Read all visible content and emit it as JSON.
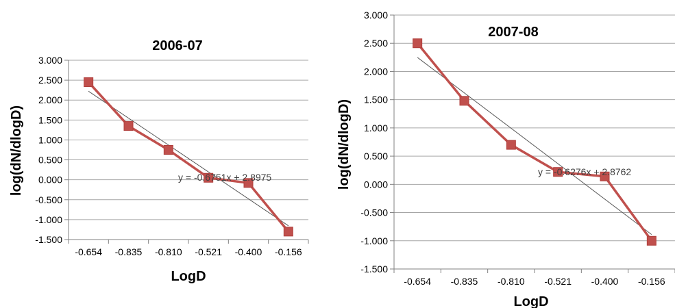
{
  "colors": {
    "series": "#c0504d",
    "marker_edge": "#b03f3c",
    "trend": "#595959",
    "grid": "#a6a6a6",
    "axis": "#808080"
  },
  "chart_data": [
    {
      "type": "line",
      "title": "2006-07",
      "xlabel": "LogD",
      "ylabel": "log(dN/dlogD)",
      "categories": [
        "-0.654",
        "-0.835",
        "-0.810",
        "-0.521",
        "-0.400",
        "-0.156"
      ],
      "series": [
        {
          "values": [
            2.45,
            1.35,
            0.75,
            0.05,
            -0.08,
            -1.3
          ]
        }
      ],
      "trendline": {
        "slope": -0.6751,
        "intercept": 2.8975,
        "equation": "y = -0.6751x + 2.8975"
      },
      "ylim": [
        -1.5,
        3.0
      ],
      "yticks": [
        "3.000",
        "2.500",
        "2.000",
        "1.500",
        "1.000",
        "0.500",
        "0.000",
        "-0.500",
        "-1.000",
        "-1.500"
      ],
      "grid": true,
      "legend": "none"
    },
    {
      "type": "line",
      "title": "2007-08",
      "xlabel": "LogD",
      "ylabel": "log(dN/dlogD)",
      "categories": [
        "-0.654",
        "-0.835",
        "-0.810",
        "-0.521",
        "-0.400",
        "-0.156"
      ],
      "series": [
        {
          "values": [
            2.5,
            1.48,
            0.7,
            0.22,
            0.14,
            -1.0
          ]
        }
      ],
      "trendline": {
        "slope": -0.6276,
        "intercept": 2.8762,
        "equation": "y = -0.6276x + 2.8762"
      },
      "ylim": [
        -1.5,
        3.0
      ],
      "yticks": [
        "3.000",
        "2.500",
        "2.000",
        "1.500",
        "1.000",
        "0.500",
        "0.000",
        "-0.500",
        "-1.000",
        "-1.500"
      ],
      "grid": true,
      "legend": "none"
    }
  ]
}
